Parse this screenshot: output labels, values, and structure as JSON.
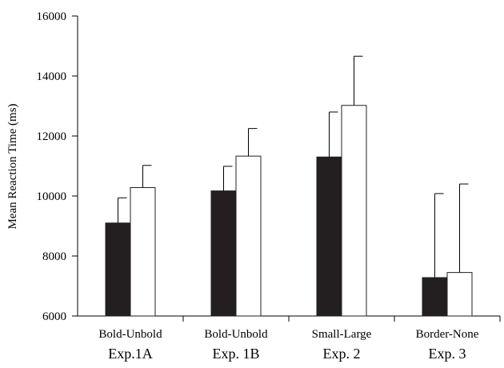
{
  "chart_data": {
    "type": "bar",
    "title": "",
    "xlabel": "",
    "ylabel": "Mean Reaction Time (ms)",
    "ylim": [
      6000,
      16000
    ],
    "yticks": [
      6000,
      8000,
      10000,
      12000,
      14000,
      16000
    ],
    "grid": false,
    "categories": [
      {
        "condition": "Bold-Unbold",
        "experiment": "Exp.1A"
      },
      {
        "condition": "Bold-Unbold",
        "experiment": "Exp. 1B"
      },
      {
        "condition": "Small-Large",
        "experiment": "Exp. 2"
      },
      {
        "condition": "Border-None",
        "experiment": "Exp. 3"
      }
    ],
    "series": [
      {
        "color": "#231f20",
        "values": [
          9100,
          10170,
          11300,
          7280
        ],
        "error_upper": [
          840,
          820,
          1500,
          2800
        ]
      },
      {
        "color": "#ffffff",
        "values": [
          10280,
          11330,
          13020,
          7450
        ],
        "error_upper": [
          740,
          920,
          1640,
          2950
        ]
      }
    ]
  }
}
